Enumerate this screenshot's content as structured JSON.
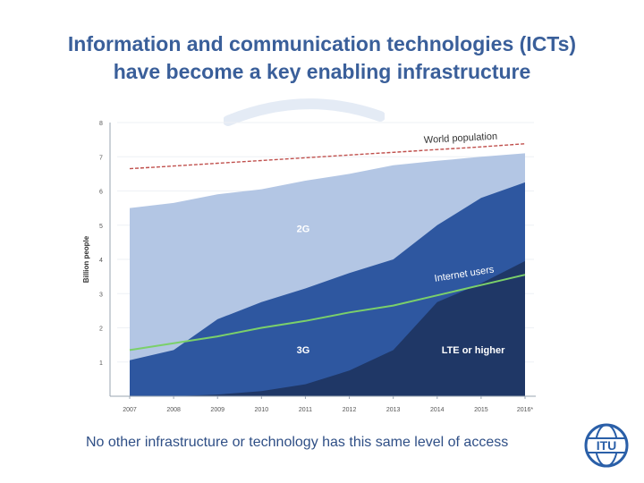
{
  "slide": {
    "title_line1": "Information and communication technologies (ICTs)",
    "title_line2": "have become a key enabling infrastructure",
    "footer": "No other infrastructure or technology has this same level of access",
    "logo_text": "ITU"
  },
  "colors": {
    "title": "#3a5f9a",
    "footer": "#2f4f86",
    "band_2g": "#b3c6e4",
    "band_3g": "#2e57a0",
    "band_lte": "#1f3766",
    "internet_line": "#7bd06a",
    "population_line": "#c0504d",
    "axis": "#9aa4b2",
    "logo": "#2a5fa8"
  },
  "chart_data": {
    "type": "area",
    "x": [
      "2007",
      "2008",
      "2009",
      "2010",
      "2011",
      "2012",
      "2013",
      "2014",
      "2015",
      "2016*"
    ],
    "x_numeric": [
      2007,
      2008,
      2009,
      2010,
      2011,
      2012,
      2013,
      2014,
      2015,
      2016
    ],
    "ylabel": "Billion people",
    "ylim": [
      0,
      8
    ],
    "yticks": [
      1,
      2,
      3,
      4,
      5,
      6,
      7,
      8
    ],
    "series": [
      {
        "name": "LTE or higher",
        "kind": "stacked-area",
        "values": [
          0.0,
          0.0,
          0.05,
          0.15,
          0.35,
          0.75,
          1.35,
          2.75,
          3.3,
          3.95
        ]
      },
      {
        "name": "3G",
        "kind": "stacked-area",
        "values": [
          1.05,
          1.35,
          2.25,
          2.75,
          3.15,
          3.6,
          4.0,
          5.0,
          5.8,
          6.25
        ]
      },
      {
        "name": "2G",
        "kind": "stacked-area",
        "values": [
          5.5,
          5.65,
          5.9,
          6.05,
          6.3,
          6.5,
          6.75,
          6.88,
          7.0,
          7.1
        ]
      },
      {
        "name": "Internet users",
        "kind": "line",
        "values": [
          1.35,
          1.55,
          1.75,
          2.0,
          2.2,
          2.45,
          2.65,
          2.95,
          3.25,
          3.55
        ]
      },
      {
        "name": "World population",
        "kind": "dashed-line",
        "values": [
          6.65,
          6.73,
          6.81,
          6.89,
          6.97,
          7.05,
          7.13,
          7.21,
          7.29,
          7.38
        ]
      }
    ]
  }
}
